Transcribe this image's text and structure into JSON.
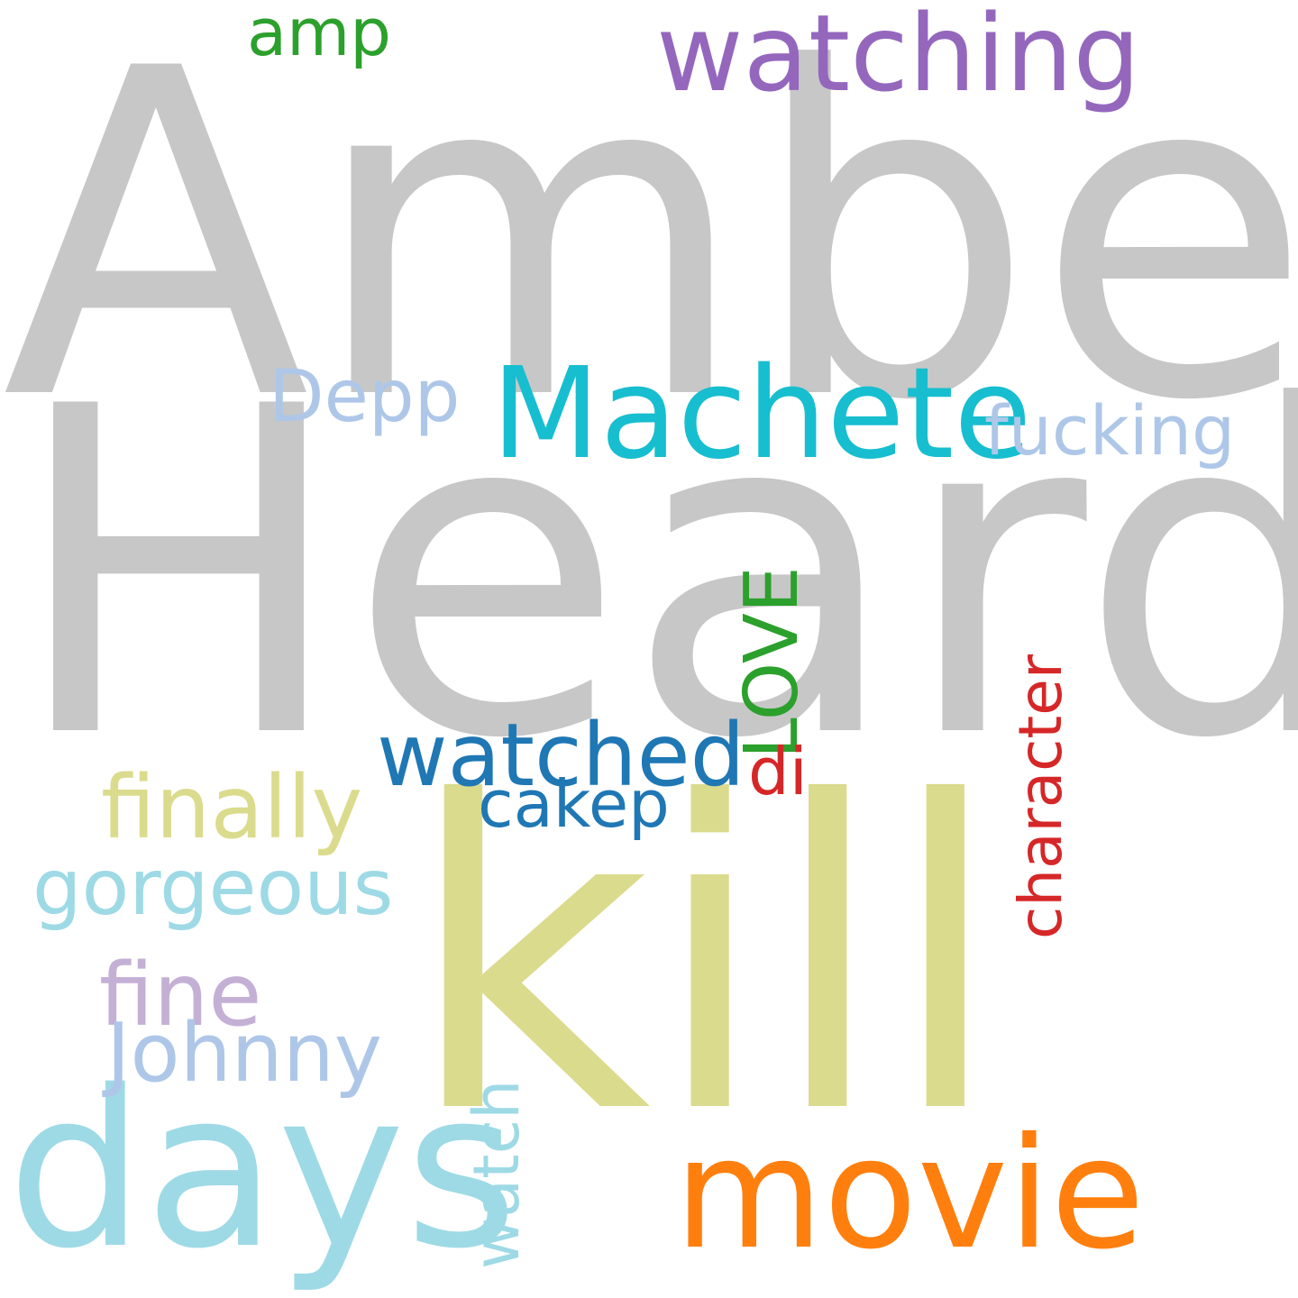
{
  "words": [
    {
      "id": "amber",
      "text": "Amber",
      "color": "#c7c7c7"
    },
    {
      "id": "heard",
      "text": "Heard",
      "color": "#c7c7c7"
    },
    {
      "id": "kill",
      "text": "kill",
      "color": "#dbdb8d"
    },
    {
      "id": "days",
      "text": "days",
      "color": "#9edae5"
    },
    {
      "id": "movie",
      "text": "movie",
      "color": "#ff7f0e"
    },
    {
      "id": "machete",
      "text": "Machete",
      "color": "#17becf"
    },
    {
      "id": "watching",
      "text": "watching",
      "color": "#9467bd"
    },
    {
      "id": "amp",
      "text": "amp",
      "color": "#2ca02c"
    },
    {
      "id": "depp",
      "text": "Depp",
      "color": "#aec7e8"
    },
    {
      "id": "fucking",
      "text": "fucking",
      "color": "#aec7e8"
    },
    {
      "id": "love",
      "text": "LOVE",
      "color": "#2ca02c"
    },
    {
      "id": "character",
      "text": "character",
      "color": "#d62728"
    },
    {
      "id": "di",
      "text": "di",
      "color": "#d62728"
    },
    {
      "id": "watched",
      "text": "watched",
      "color": "#1f77b4"
    },
    {
      "id": "cakep",
      "text": "cakep",
      "color": "#1f77b4"
    },
    {
      "id": "finally",
      "text": "finally",
      "color": "#dbdb8d"
    },
    {
      "id": "gorgeous",
      "text": "gorgeous",
      "color": "#9edae5"
    },
    {
      "id": "fine",
      "text": "fine",
      "color": "#c5b0d5"
    },
    {
      "id": "johnny",
      "text": "Johnny",
      "color": "#aec7e8"
    },
    {
      "id": "watch",
      "text": "watch",
      "color": "#9edae5"
    }
  ]
}
